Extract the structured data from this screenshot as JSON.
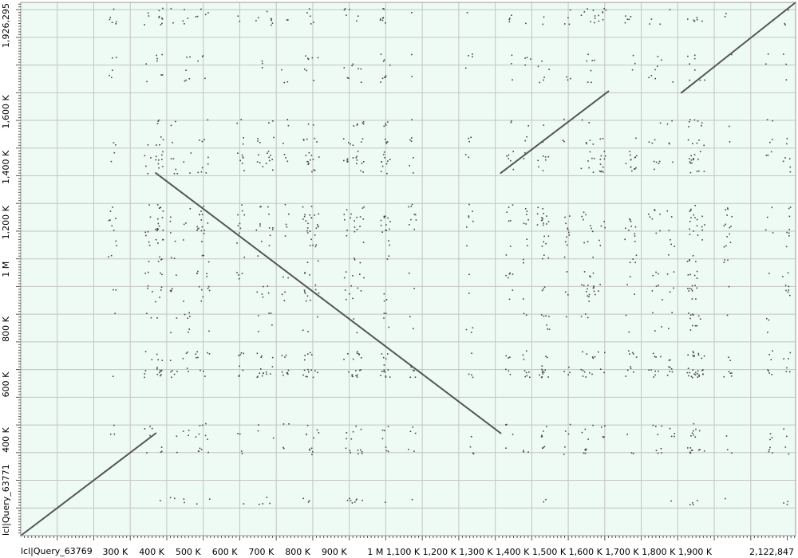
{
  "chart_data": {
    "type": "scatter",
    "subtype": "dot-plot",
    "xlabel": "lcl|Query_63769",
    "ylabel": "lcl|Query_63771",
    "xlim": [
      0,
      2122847
    ],
    "ylim": [
      0,
      1926295
    ],
    "x_ticks": [
      {
        "value": 300000,
        "label": "300 K"
      },
      {
        "value": 400000,
        "label": "400 K"
      },
      {
        "value": 500000,
        "label": "500 K"
      },
      {
        "value": 600000,
        "label": "600 K"
      },
      {
        "value": 700000,
        "label": "700 K"
      },
      {
        "value": 800000,
        "label": "800 K"
      },
      {
        "value": 900000,
        "label": "900 K"
      },
      {
        "value": 1000000,
        "label": "1 M"
      },
      {
        "value": 1100000,
        "label": "1,100 K"
      },
      {
        "value": 1200000,
        "label": "1,200 K"
      },
      {
        "value": 1300000,
        "label": "1,300 K"
      },
      {
        "value": 1400000,
        "label": "1,400 K"
      },
      {
        "value": 1500000,
        "label": "1,500 K"
      },
      {
        "value": 1600000,
        "label": "1,600 K"
      },
      {
        "value": 1700000,
        "label": "1,700 K"
      },
      {
        "value": 1800000,
        "label": "1,800 K"
      },
      {
        "value": 1900000,
        "label": "1,900 K"
      },
      {
        "value": 2122847,
        "label": "2,122,847"
      }
    ],
    "x_grid": [
      100000,
      200000,
      300000,
      400000,
      500000,
      600000,
      700000,
      800000,
      900000,
      1000000,
      1100000,
      1200000,
      1300000,
      1400000,
      1500000,
      1600000,
      1700000,
      1800000,
      1900000,
      2000000
    ],
    "y_ticks": [
      {
        "value": 400000,
        "label": "400 K"
      },
      {
        "value": 600000,
        "label": "600 K"
      },
      {
        "value": 800000,
        "label": "800 K"
      },
      {
        "value": 1000000,
        "label": "1 M"
      },
      {
        "value": 1200000,
        "label": "1,200 K"
      },
      {
        "value": 1400000,
        "label": "1,400 K"
      },
      {
        "value": 1600000,
        "label": "1,600 K"
      },
      {
        "value": 1926295,
        "label": "1,926,295"
      }
    ],
    "y_grid": [
      100000,
      200000,
      300000,
      400000,
      500000,
      600000,
      700000,
      800000,
      900000,
      1000000,
      1100000,
      1200000,
      1300000,
      1400000,
      1500000,
      1600000,
      1700000,
      1800000,
      1900000
    ],
    "grid": true,
    "alignments": [
      {
        "x1": 0,
        "y1": 0,
        "x2": 370000,
        "y2": 370000
      },
      {
        "x1": 370000,
        "y1": 1310000,
        "x2": 1315000,
        "y2": 370000
      },
      {
        "x1": 1315000,
        "y1": 1310000,
        "x2": 1610000,
        "y2": 1605000
      },
      {
        "x1": 1810000,
        "y1": 1600000,
        "x2": 2122847,
        "y2": 1926295
      }
    ],
    "colors": {
      "background": "#edfbf4",
      "grid": "#c4c4c4",
      "alignment": "#555555",
      "dots": "#444444"
    }
  }
}
